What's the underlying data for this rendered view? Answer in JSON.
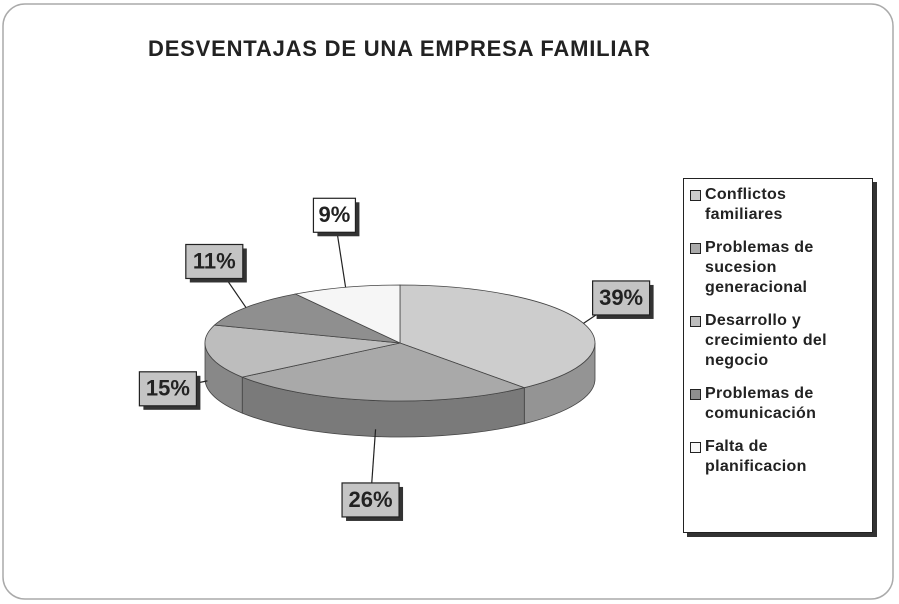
{
  "chart_data": {
    "type": "pie",
    "title": "DESVENTAJAS DE UNA EMPRESA FAMILIAR",
    "categories": [
      "Conflictos familiares",
      "Problemas de sucesion generacional",
      "Desarrollo y crecimiento del negocio",
      "Problemas de comunicación",
      "Falta de planificacion"
    ],
    "values": [
      39,
      26,
      15,
      11,
      9
    ],
    "value_labels": [
      "39%",
      "26%",
      "15%",
      "11%",
      "9%"
    ],
    "colors": [
      "#cdcdcd",
      "#a9a9a9",
      "#bdbdbd",
      "#8f8f8f",
      "#f6f6f6"
    ],
    "legend": "right"
  }
}
